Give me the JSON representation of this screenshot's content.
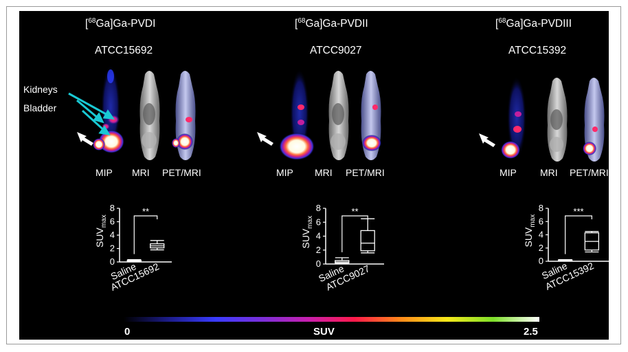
{
  "colors": {
    "background": "#000000",
    "arrow_cyan": "#19c9d4",
    "arrow_white": "#ffffff",
    "colorbar": [
      "#000000",
      "#1d1d8c",
      "#3a3cff",
      "#7b2fd9",
      "#c81fae",
      "#ff1a4a",
      "#ff8a1a",
      "#f7e81a",
      "#7ee02a",
      "#ffffff"
    ]
  },
  "annotations": {
    "kidneys": "Kidneys",
    "bladder": "Bladder"
  },
  "panels": [
    {
      "tracer_prefix": "[",
      "tracer_sup": "68",
      "tracer_rest": "Ga]Ga-PVDI",
      "strain": "ATCC15692",
      "labels": {
        "mip": "MIP",
        "mri": "MRI",
        "petmri": "PET/MRI"
      },
      "chart": {
        "ylabel_main": "SUV",
        "ylabel_sub": "max",
        "yticks": [
          "8",
          "6",
          "4",
          "2",
          "0"
        ],
        "categories": [
          "Saline",
          "ATCC15692"
        ],
        "significance": "**"
      }
    },
    {
      "tracer_prefix": "[",
      "tracer_sup": "68",
      "tracer_rest": "Ga]Ga-PVDII",
      "strain": "ATCC9027",
      "labels": {
        "mip": "MIP",
        "mri": "MRI",
        "petmri": "PET/MRI"
      },
      "chart": {
        "ylabel_main": "SUV",
        "ylabel_sub": "max",
        "yticks": [
          "8",
          "6",
          "4",
          "2",
          "0"
        ],
        "categories": [
          "Saline",
          "ATCC9027"
        ],
        "significance": "**"
      }
    },
    {
      "tracer_prefix": "[",
      "tracer_sup": "68",
      "tracer_rest": "Ga]Ga-PVDIII",
      "strain": "ATCC15392",
      "labels": {
        "mip": "MIP",
        "mri": "MRI",
        "petmri": "PET/MRI"
      },
      "chart": {
        "ylabel_main": "SUV",
        "ylabel_sub": "max",
        "yticks": [
          "8",
          "6",
          "4",
          "2",
          "0"
        ],
        "categories": [
          "Saline",
          "ATCC15392"
        ],
        "significance": "***"
      }
    }
  ],
  "colorbar": {
    "min_label": "0",
    "title": "SUV",
    "max_label": "2.5"
  },
  "chart_data": [
    {
      "type": "box",
      "ylim": [
        0,
        8
      ],
      "ylabel": "SUVmax",
      "categories": [
        "Saline",
        "ATCC15692"
      ],
      "boxes": [
        {
          "min": 0.1,
          "q1": 0.15,
          "median": 0.2,
          "q3": 0.25,
          "max": 0.35
        },
        {
          "min": 1.8,
          "q1": 2.1,
          "median": 2.4,
          "q3": 2.7,
          "max": 3.2
        }
      ]
    },
    {
      "type": "box",
      "ylim": [
        0,
        8
      ],
      "ylabel": "SUVmax",
      "categories": [
        "Saline",
        "ATCC9027"
      ],
      "boxes": [
        {
          "min": 0.05,
          "q1": 0.15,
          "median": 0.3,
          "q3": 0.5,
          "max": 0.9
        },
        {
          "min": 1.6,
          "q1": 1.9,
          "median": 3.0,
          "q3": 4.8,
          "max": 6.5
        }
      ]
    },
    {
      "type": "box",
      "ylim": [
        0,
        8
      ],
      "ylabel": "SUVmax",
      "categories": [
        "Saline",
        "ATCC15392"
      ],
      "boxes": [
        {
          "min": 0.05,
          "q1": 0.1,
          "median": 0.15,
          "q3": 0.2,
          "max": 0.25
        },
        {
          "min": 1.4,
          "q1": 1.7,
          "median": 3.0,
          "q3": 4.3,
          "max": 4.5
        }
      ]
    }
  ]
}
